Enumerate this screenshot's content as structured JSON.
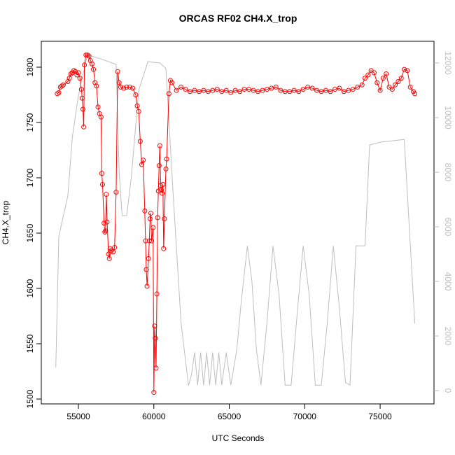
{
  "chart_data": {
    "type": "line",
    "title": "ORCAS RF02 CH4.X_trop",
    "x_label": "UTC Seconds",
    "y_label": "CH4.X_trop",
    "xlim": [
      52540,
      78570
    ],
    "xticks": [
      55000,
      60000,
      65000,
      70000,
      75000
    ],
    "ylim": [
      1495.6,
      1823.4
    ],
    "yticks": [
      1500,
      1550,
      1600,
      1650,
      1700,
      1750,
      1800
    ],
    "y2lim": [
      -487,
      12795
    ],
    "y2ticks": [
      0,
      2000,
      4000,
      6000,
      8000,
      10000,
      12000
    ],
    "series": [
      {
        "color": "#ff0000",
        "marker": "open-circle",
        "x": [
          53600,
          53700,
          53800,
          53900,
          54000,
          54300,
          54400,
          54500,
          54600,
          54700,
          54800,
          54900,
          55000,
          55100,
          55200,
          55250,
          55300,
          55350,
          55400,
          55500,
          55600,
          55700,
          55800,
          55900,
          56000,
          56100,
          56200,
          56300,
          56400,
          56500,
          56550,
          56600,
          56700,
          56750,
          56800,
          56850,
          56900,
          57000,
          57050,
          57100,
          57150,
          57300,
          57400,
          57500,
          57600,
          57700,
          57800,
          58000,
          58200,
          58400,
          58600,
          58800,
          58900,
          59000,
          59100,
          59200,
          59300,
          59400,
          59450,
          59500,
          59550,
          59650,
          59700,
          59750,
          59800,
          59850,
          59950,
          60000,
          60050,
          60100,
          60150,
          60200,
          60250,
          60300,
          60350,
          60400,
          60450,
          60500,
          60550,
          60600,
          60650,
          60700,
          60800,
          60850,
          61000,
          61100,
          61200,
          61500,
          61800,
          62100,
          62400,
          62700,
          63000,
          63300,
          63600,
          63900,
          64200,
          64500,
          64800,
          65100,
          65400,
          65700,
          66000,
          66300,
          66600,
          66900,
          67200,
          67500,
          67800,
          68100,
          68400,
          68700,
          69000,
          69300,
          69600,
          69900,
          70200,
          70500,
          70800,
          71100,
          71400,
          71700,
          72000,
          72300,
          72600,
          72900,
          73200,
          73500,
          73800,
          74000,
          74200,
          74400,
          74600,
          74800,
          75000,
          75200,
          75400,
          75600,
          75800,
          76000,
          76200,
          76400,
          76600,
          76800,
          77000,
          77200,
          77300
        ],
        "values": [
          1776,
          1777,
          1782,
          1783,
          1784,
          1787,
          1790,
          1794,
          1795,
          1797,
          1796,
          1793,
          1795,
          1790,
          1780,
          1772,
          1762,
          1746,
          1802,
          1811,
          1811,
          1810,
          1806,
          1803,
          1798,
          1786,
          1783,
          1764,
          1758,
          1755,
          1704,
          1694,
          1659,
          1651,
          1652,
          1685,
          1660,
          1631,
          1627,
          1636,
          1634,
          1633,
          1637,
          1687,
          1796,
          1786,
          1782,
          1781,
          1782,
          1782,
          1781,
          1775,
          1765,
          1760,
          1733,
          1712,
          1716,
          1670,
          1643,
          1617,
          1602,
          1627,
          1643,
          1663,
          1668,
          1643,
          1655,
          1506,
          1566,
          1555,
          1528,
          1595,
          1664,
          1688,
          1711,
          1729,
          1693,
          1689,
          1686,
          1694,
          1636,
          1663,
          1708,
          1717,
          1776,
          1788,
          1786,
          1779,
          1782,
          1780,
          1778,
          1779,
          1778,
          1779,
          1778,
          1779,
          1780,
          1778,
          1779,
          1777,
          1779,
          1778,
          1780,
          1780,
          1779,
          1778,
          1779,
          1780,
          1781,
          1782,
          1779,
          1778,
          1778,
          1779,
          1778,
          1780,
          1782,
          1781,
          1779,
          1778,
          1779,
          1778,
          1780,
          1781,
          1778,
          1779,
          1780,
          1782,
          1784,
          1790,
          1793,
          1797,
          1795,
          1786,
          1779,
          1790,
          1794,
          1782,
          1780,
          1784,
          1787,
          1790,
          1798,
          1797,
          1782,
          1778,
          1776
        ]
      },
      {
        "color": "#bebebe",
        "axis": "y2",
        "x": [
          53500,
          53700,
          54000,
          54300,
          54600,
          55000,
          55600,
          56500,
          57500,
          57700,
          57900,
          58200,
          58500,
          59000,
          59600,
          60400,
          60800,
          61300,
          61800,
          62300,
          62500,
          62700,
          62900,
          63100,
          63300,
          63500,
          63700,
          63900,
          64100,
          64300,
          64500,
          64800,
          65100,
          65500,
          65800,
          66200,
          66500,
          66800,
          67100,
          67500,
          67900,
          68300,
          68700,
          69100,
          69500,
          69900,
          70300,
          70700,
          71100,
          71500,
          71900,
          72300,
          72700,
          73000,
          73400,
          73700,
          74000,
          74300,
          75000,
          76600,
          77300
        ],
        "values": [
          850,
          5640,
          6400,
          7130,
          9300,
          10800,
          12300,
          12150,
          11950,
          8000,
          6410,
          6410,
          7800,
          11000,
          12050,
          12000,
          11800,
          7000,
          2500,
          180,
          600,
          1400,
          200,
          1400,
          200,
          1400,
          200,
          1400,
          200,
          1400,
          200,
          1400,
          200,
          1500,
          3300,
          5300,
          4000,
          1500,
          200,
          2500,
          5300,
          3500,
          200,
          200,
          2800,
          5300,
          3500,
          200,
          200,
          2500,
          5300,
          3000,
          300,
          200,
          5300,
          5300,
          5300,
          9000,
          9100,
          9200,
          2460
        ]
      }
    ]
  }
}
